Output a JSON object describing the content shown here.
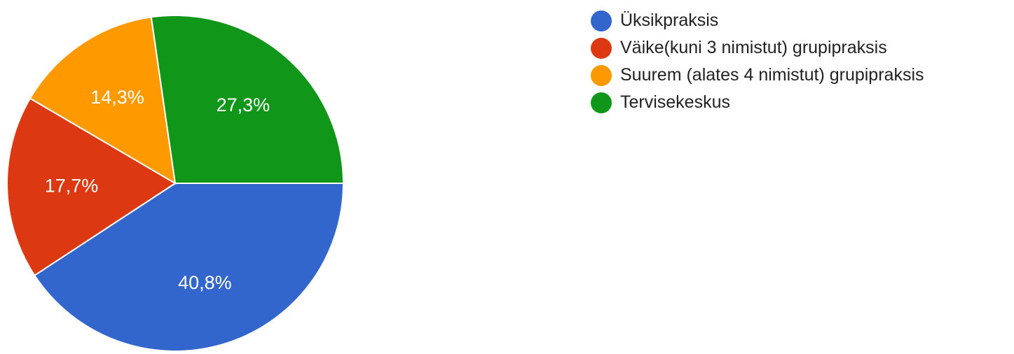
{
  "chart_data": {
    "type": "pie",
    "slices": [
      {
        "label": "Üksikpraksis",
        "value": 40.8,
        "display": "40,8%",
        "color": "#3366cc"
      },
      {
        "label": "Väike(kuni 3 nimistut) grupipraksis",
        "value": 17.7,
        "display": "17,7%",
        "color": "#dc3912"
      },
      {
        "label": "Suurem (alates 4 nimistut) grupipraksis",
        "value": 14.3,
        "display": "14,3%",
        "color": "#ff9900"
      },
      {
        "label": "Tervisekeskus",
        "value": 27.3,
        "display": "27,3%",
        "color": "#109618"
      }
    ],
    "legend_position": "right"
  }
}
